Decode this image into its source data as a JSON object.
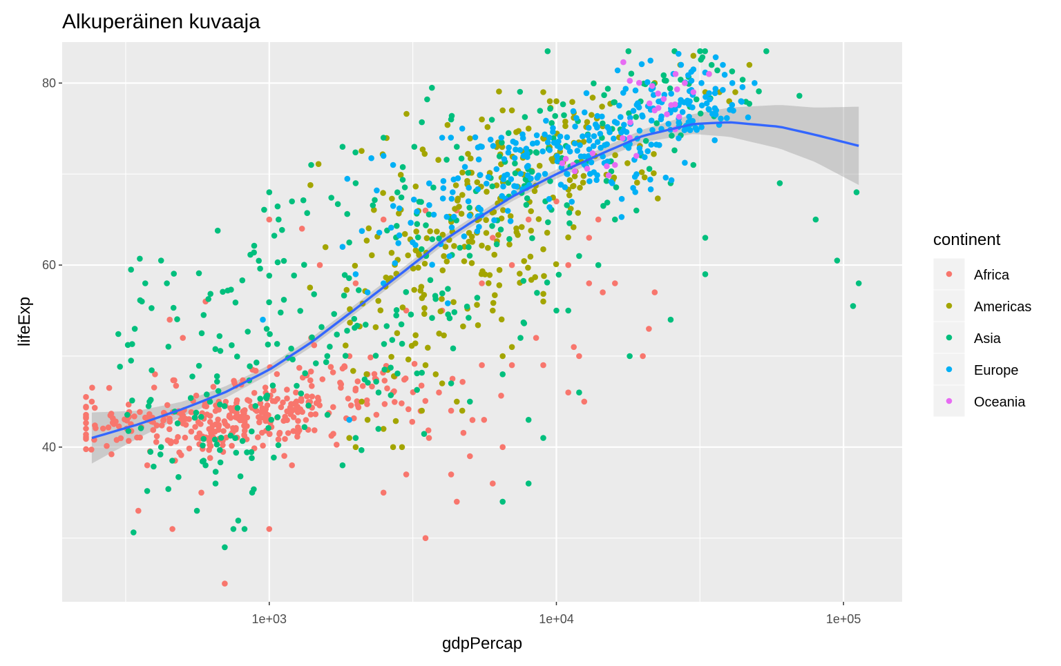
{
  "chart_data": {
    "type": "scatter",
    "title": "Alkuperäinen kuvaaja",
    "xlabel": "gdpPercap",
    "ylabel": "lifeExp",
    "x_scale": "log10",
    "xlim": [
      190,
      160000
    ],
    "ylim": [
      23,
      84.5
    ],
    "x_ticks": [
      1000,
      10000,
      100000
    ],
    "x_tick_labels": [
      "1e+03",
      "1e+04",
      "1e+05"
    ],
    "x_minor_ticks": [
      316.23,
      3162.3,
      31623
    ],
    "y_ticks": [
      40,
      60,
      80
    ],
    "y_tick_labels": [
      "40",
      "60",
      "80"
    ],
    "y_minor_ticks": [
      30,
      50,
      70
    ],
    "grid": true,
    "panel_background": "#EBEBEB",
    "legend": {
      "title": "continent",
      "position": "right",
      "entries": [
        "Africa",
        "Americas",
        "Asia",
        "Europe",
        "Oceania"
      ]
    },
    "colors": {
      "Africa": "#F8766D",
      "Americas": "#A3A500",
      "Asia": "#00BF7D",
      "Europe": "#00B0F6",
      "Oceania": "#E76BF3",
      "smooth": "#3366FF",
      "ribbon": "#999999"
    },
    "series": [
      {
        "name": "Africa",
        "centers": [
          [
            400,
            42,
            2.2,
            1.8,
            90
          ],
          [
            800,
            43,
            2,
            1.5,
            150
          ],
          [
            1200,
            45,
            3,
            2,
            90
          ],
          [
            1800,
            47,
            2.2,
            1.6,
            40
          ]
        ],
        "points": [
          [
            241,
            45
          ],
          [
            277,
            46.5
          ],
          [
            320,
            42
          ],
          [
            350,
            33
          ],
          [
            376,
            38
          ],
          [
            460,
            31
          ],
          [
            580,
            35
          ],
          [
            700,
            25
          ],
          [
            1000,
            31
          ],
          [
            1200,
            38
          ],
          [
            2500,
            35
          ],
          [
            3000,
            37
          ],
          [
            3500,
            30
          ],
          [
            3600,
            41
          ],
          [
            4300,
            37
          ],
          [
            4500,
            34
          ],
          [
            5000,
            39
          ],
          [
            6000,
            36
          ],
          [
            6500,
            40
          ],
          [
            3900,
            46
          ],
          [
            4300,
            44
          ],
          [
            5600,
            43
          ],
          [
            5500,
            49
          ],
          [
            7000,
            49
          ],
          [
            8500,
            52
          ],
          [
            9000,
            49
          ],
          [
            11500,
            51
          ],
          [
            12000,
            50
          ],
          [
            12500,
            45
          ],
          [
            13000,
            58
          ],
          [
            14500,
            57
          ],
          [
            16000,
            58
          ],
          [
            20000,
            50
          ],
          [
            21000,
            53
          ],
          [
            22000,
            57
          ],
          [
            13000,
            63
          ],
          [
            14000,
            65
          ],
          [
            11000,
            60
          ],
          [
            1000,
            65
          ],
          [
            1300,
            64
          ],
          [
            2500,
            65
          ],
          [
            3500,
            66
          ],
          [
            4500,
            66
          ],
          [
            6000,
            63
          ],
          [
            7000,
            60
          ],
          [
            11000,
            46
          ],
          [
            8000,
            65
          ],
          [
            10000,
            67
          ],
          [
            5500,
            58
          ],
          [
            4000,
            55
          ],
          [
            3000,
            55
          ],
          [
            2000,
            58
          ],
          [
            1500,
            60
          ],
          [
            1400,
            52
          ],
          [
            2200,
            48
          ],
          [
            2700,
            46
          ],
          [
            400,
            48
          ],
          [
            450,
            54
          ],
          [
            500,
            52
          ],
          [
            600,
            56
          ]
        ]
      },
      {
        "name": "Americas",
        "centers": [
          [
            5000,
            64,
            2.2,
            4.5,
            110
          ],
          [
            8000,
            70,
            1.8,
            3,
            70
          ],
          [
            3000,
            56,
            2,
            4,
            50
          ],
          [
            13000,
            74,
            1.5,
            2.5,
            35
          ]
        ],
        "points": [
          [
            1900,
            41
          ],
          [
            2000,
            40
          ],
          [
            2100,
            45
          ],
          [
            2200,
            43
          ],
          [
            2500,
            42
          ],
          [
            2700,
            40
          ],
          [
            2900,
            40
          ],
          [
            3400,
            44
          ],
          [
            3500,
            49
          ],
          [
            3800,
            48
          ],
          [
            4000,
            47
          ],
          [
            4500,
            45
          ],
          [
            4700,
            44
          ],
          [
            6000,
            55
          ],
          [
            6500,
            50
          ],
          [
            7000,
            51
          ],
          [
            9000,
            56
          ],
          [
            9000,
            79
          ],
          [
            10000,
            78
          ],
          [
            7000,
            77
          ],
          [
            6500,
            77
          ],
          [
            5500,
            76
          ],
          [
            8000,
            75
          ],
          [
            28000,
            80
          ],
          [
            34000,
            81
          ],
          [
            33000,
            79
          ],
          [
            37000,
            79
          ],
          [
            40000,
            78
          ],
          [
            42000,
            79
          ],
          [
            44000,
            78
          ],
          [
            47000,
            82
          ],
          [
            30000,
            83
          ],
          [
            27000,
            82
          ],
          [
            22000,
            80
          ]
        ]
      },
      {
        "name": "Asia",
        "centers": [
          [
            700,
            48,
            2.2,
            7,
            80
          ],
          [
            1800,
            55,
            2.5,
            7,
            70
          ],
          [
            4000,
            64,
            2.5,
            6,
            60
          ],
          [
            8000,
            70,
            2,
            5,
            40
          ],
          [
            15000,
            74,
            2,
            4,
            35
          ],
          [
            28000,
            79,
            1.8,
            3,
            35
          ],
          [
            700,
            40,
            1.6,
            3,
            25
          ]
        ],
        "points": [
          [
            330,
            59.5
          ],
          [
            340,
            53
          ],
          [
            370,
            58
          ],
          [
            420,
            60.5
          ],
          [
            440,
            58
          ],
          [
            330,
            49.5
          ],
          [
            360,
            56
          ],
          [
            380,
            44.5
          ],
          [
            420,
            40
          ],
          [
            700,
            29
          ],
          [
            750,
            31
          ],
          [
            820,
            31
          ],
          [
            650,
            36
          ],
          [
            600,
            38
          ],
          [
            560,
            33
          ],
          [
            1000,
            68
          ],
          [
            1200,
            67
          ],
          [
            1400,
            71
          ],
          [
            1800,
            73
          ],
          [
            2000,
            69
          ],
          [
            2500,
            74
          ],
          [
            3200,
            73
          ],
          [
            4500,
            73
          ],
          [
            4300,
            76
          ],
          [
            1800,
            38
          ],
          [
            2000,
            41
          ],
          [
            2400,
            42
          ],
          [
            4300,
            47
          ],
          [
            5000,
            45
          ],
          [
            6500,
            48
          ],
          [
            7500,
            52
          ],
          [
            6500,
            34
          ],
          [
            8000,
            36
          ],
          [
            9000,
            41
          ],
          [
            10000,
            55
          ],
          [
            11000,
            55
          ],
          [
            12000,
            46
          ],
          [
            18000,
            50
          ],
          [
            25000,
            54
          ],
          [
            33000,
            59
          ],
          [
            33000,
            63
          ],
          [
            30000,
            71
          ],
          [
            60000,
            69
          ],
          [
            80000,
            65
          ],
          [
            95000,
            60.5
          ],
          [
            108000,
            55.5
          ],
          [
            113000,
            58
          ],
          [
            111000,
            68
          ],
          [
            8000,
            43
          ],
          [
            12000,
            61
          ],
          [
            14000,
            60
          ],
          [
            16000,
            65
          ],
          [
            19000,
            66
          ],
          [
            25000,
            69
          ]
        ]
      },
      {
        "name": "Europe",
        "centers": [
          [
            9000,
            71,
            1.8,
            2.5,
            90
          ],
          [
            16000,
            74,
            1.6,
            2.2,
            70
          ],
          [
            28000,
            78,
            1.5,
            2,
            90
          ],
          [
            4500,
            67,
            1.8,
            3,
            40
          ],
          [
            2800,
            63,
            1.6,
            4,
            12
          ]
        ],
        "points": [
          [
            2500,
            72
          ],
          [
            2700,
            71
          ],
          [
            2200,
            57
          ],
          [
            2500,
            58
          ],
          [
            1800,
            62
          ],
          [
            2000,
            59
          ],
          [
            1900,
            43
          ],
          [
            950,
            54
          ],
          [
            4000,
            74
          ],
          [
            4700,
            75
          ],
          [
            5500,
            73
          ],
          [
            38000,
            82
          ],
          [
            41000,
            80
          ],
          [
            49000,
            80
          ],
          [
            44000,
            78
          ],
          [
            36000,
            77
          ],
          [
            32000,
            80
          ],
          [
            30000,
            81.5
          ]
        ]
      },
      {
        "name": "Oceania",
        "centers": [
          [
            13000,
            71,
            1.3,
            1.2,
            8
          ],
          [
            24000,
            78,
            1.4,
            2,
            16
          ]
        ],
        "points": [
          [
            28000,
            80
          ],
          [
            30000,
            79
          ],
          [
            34000,
            81
          ],
          [
            18000,
            74
          ],
          [
            22000,
            77
          ],
          [
            26000,
            81
          ],
          [
            19000,
            72
          ],
          [
            16000,
            71
          ]
        ]
      }
    ],
    "smooth": {
      "method": "loess",
      "fit": [
        [
          241,
          41
        ],
        [
          350,
          42.5
        ],
        [
          500,
          44.2
        ],
        [
          700,
          46
        ],
        [
          1000,
          48.5
        ],
        [
          1400,
          51.5
        ],
        [
          2000,
          55.2
        ],
        [
          3000,
          59.5
        ],
        [
          4000,
          62.6
        ],
        [
          5000,
          64.6
        ],
        [
          7000,
          67.5
        ],
        [
          10000,
          70
        ],
        [
          15000,
          72.5
        ],
        [
          20000,
          74.2
        ],
        [
          30000,
          75.5
        ],
        [
          40000,
          75.7
        ],
        [
          60000,
          75.2
        ],
        [
          80000,
          74.3
        ],
        [
          113000,
          73.1
        ]
      ],
      "se": [
        [
          241,
          2.8
        ],
        [
          350,
          1.5
        ],
        [
          500,
          0.8
        ],
        [
          1000,
          0.5
        ],
        [
          3000,
          0.5
        ],
        [
          10000,
          0.5
        ],
        [
          20000,
          0.7
        ],
        [
          30000,
          1.1
        ],
        [
          40000,
          1.6
        ],
        [
          60000,
          2.4
        ],
        [
          80000,
          3
        ],
        [
          113000,
          4.3
        ]
      ]
    }
  }
}
